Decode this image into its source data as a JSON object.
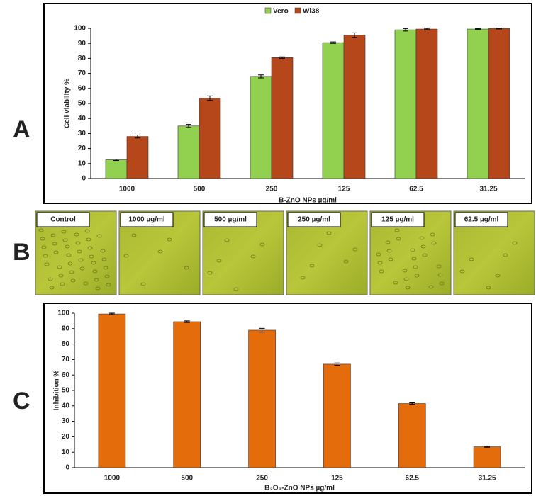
{
  "panel_labels": [
    "A",
    "B",
    "C"
  ],
  "chart_data": [
    {
      "type": "bar",
      "ylabel": "Cell viability %",
      "xlabel": "B-ZnO NPs µg/ml",
      "categories": [
        "1000",
        "500",
        "250",
        "125",
        "62.5",
        "31.25"
      ],
      "series": [
        {
          "name": "Vero",
          "color": "#92d050",
          "values": [
            12.5,
            35,
            68,
            90.5,
            99,
            99.5
          ],
          "errors": [
            0.5,
            1,
            1,
            0.5,
            0.8,
            0.3
          ]
        },
        {
          "name": "Wi38",
          "color": "#b5471a",
          "values": [
            28,
            53.5,
            80.5,
            95.5,
            99.5,
            99.8
          ],
          "errors": [
            1,
            1.5,
            0.5,
            1.5,
            0.5,
            0.3
          ]
        }
      ],
      "ylim": [
        0,
        100
      ],
      "yticks": [
        0,
        10,
        20,
        30,
        40,
        50,
        60,
        70,
        80,
        90,
        100
      ],
      "legend": "top"
    },
    {
      "type": "bar",
      "ylabel": "Inhibition %",
      "xlabel": "B₂O₃-ZnO NPs µg/ml",
      "categories": [
        "1000",
        "500",
        "250",
        "125",
        "62.5",
        "31.25"
      ],
      "series": [
        {
          "name": "Inhibition",
          "color": "#e46c0a",
          "values": [
            99.5,
            94.5,
            89,
            67,
            41.5,
            13.5
          ],
          "errors": [
            0.5,
            0.5,
            1.2,
            0.8,
            0.5,
            0.3
          ]
        }
      ],
      "ylim": [
        0,
        100
      ],
      "yticks": [
        0,
        10,
        20,
        30,
        40,
        50,
        60,
        70,
        80,
        90,
        100
      ],
      "legend": "none"
    }
  ],
  "micrographs": {
    "labels": [
      "Control",
      "1000 µg/ml",
      "500 µg/ml",
      "250 µg/ml",
      "125 µg/ml",
      "62.5 µg/ml"
    ]
  }
}
